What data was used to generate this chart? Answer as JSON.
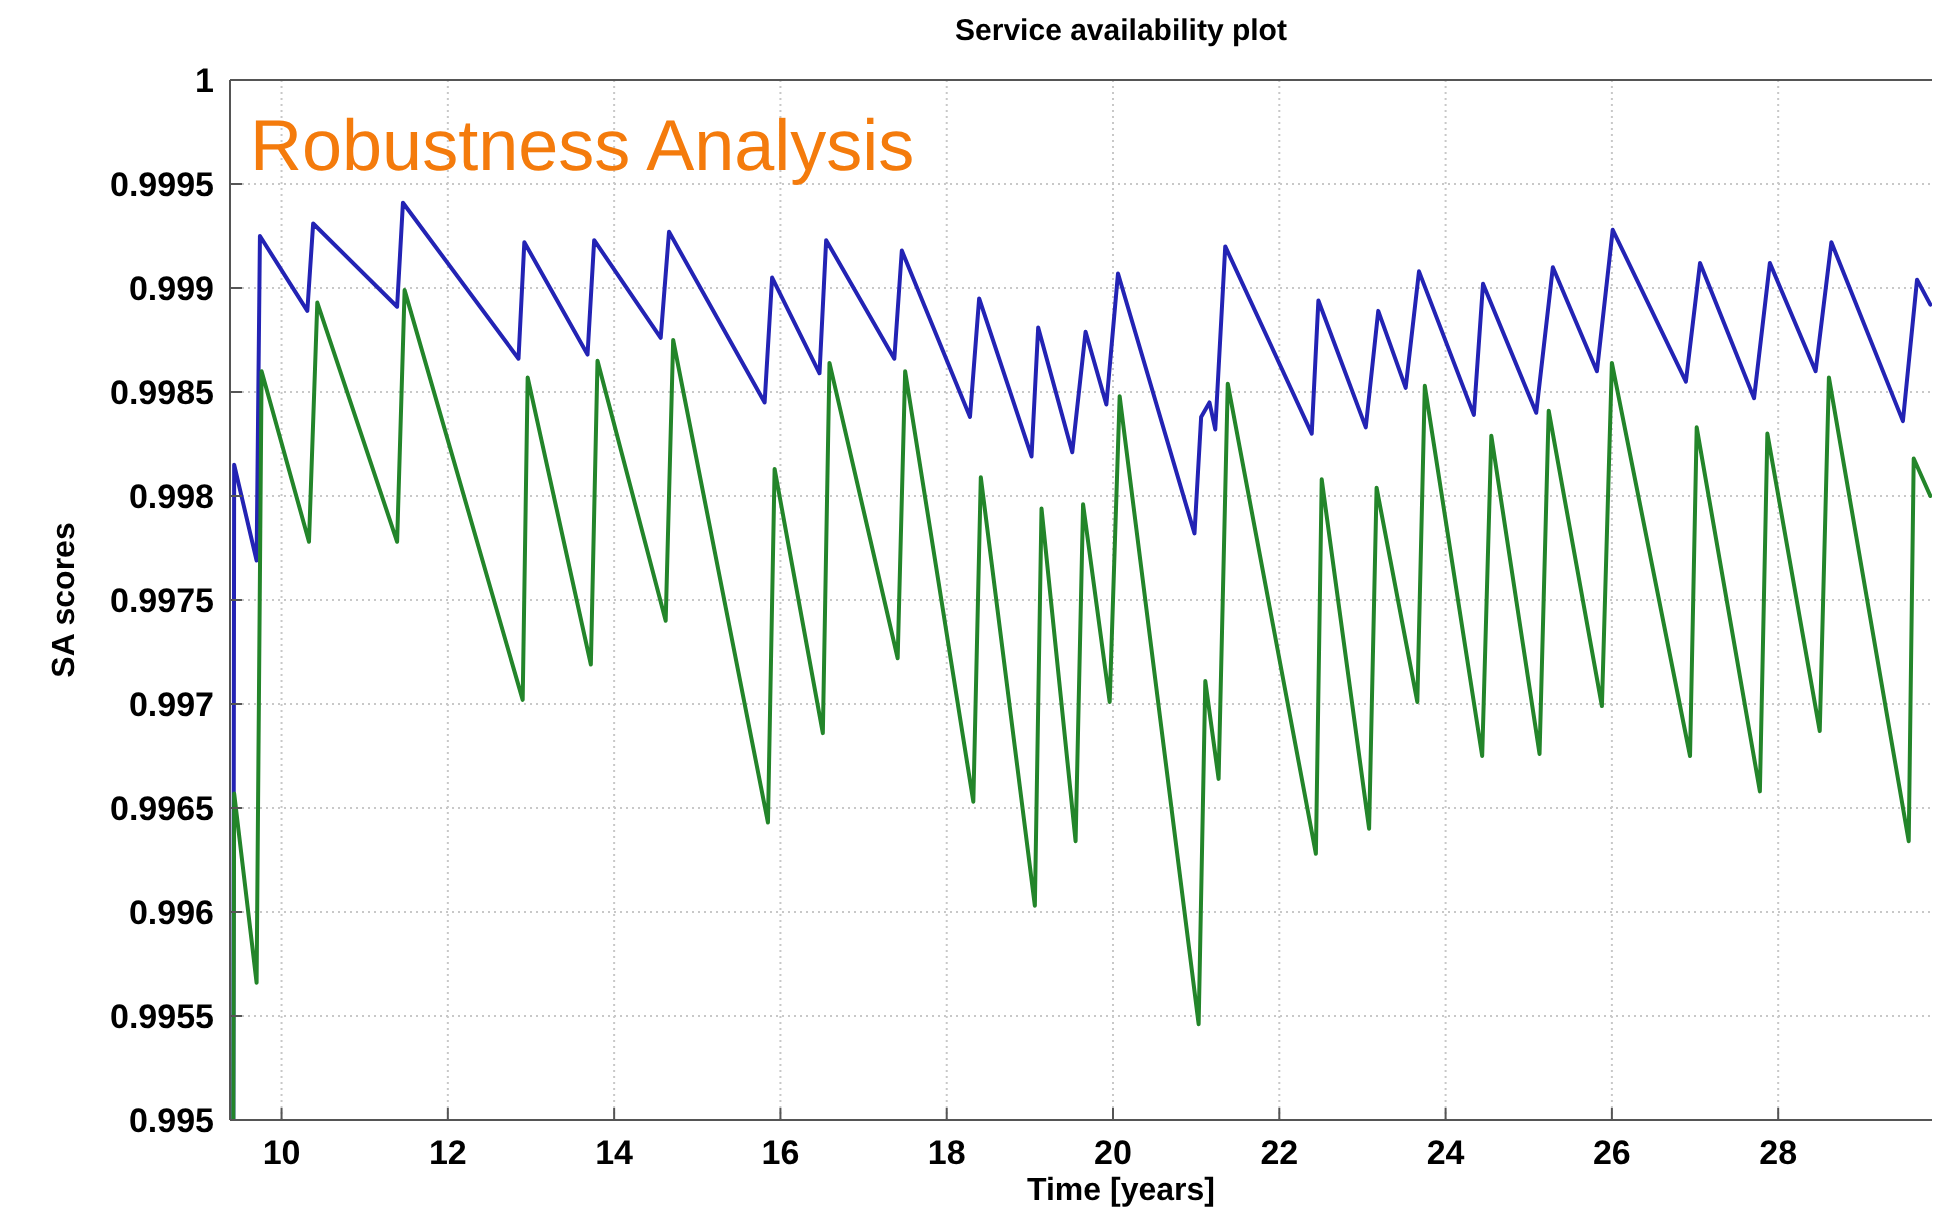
{
  "chart_data": {
    "type": "line",
    "title": "Service availability plot",
    "xlabel": "Time [years]",
    "ylabel": "SA scores",
    "annotations": [
      "Robustness Analysis"
    ],
    "xlim": [
      9.38,
      29.85
    ],
    "ylim": [
      0.995,
      1
    ],
    "xticks": [
      10,
      12,
      14,
      16,
      18,
      20,
      22,
      24,
      26,
      28
    ],
    "yticks": [
      0.995,
      0.9955,
      0.996,
      0.9965,
      0.997,
      0.9975,
      0.998,
      0.9985,
      0.999,
      0.9995,
      1
    ],
    "grid": true,
    "series": [
      {
        "color": "#2323b4",
        "x": [
          9.42,
          9.43,
          9.7,
          9.74,
          10.31,
          10.38,
          11.39,
          11.46,
          12.85,
          12.92,
          13.68,
          13.76,
          14.56,
          14.66,
          15.81,
          15.9,
          16.47,
          16.55,
          17.37,
          17.46,
          18.28,
          18.39,
          19.02,
          19.1,
          19.51,
          19.67,
          19.92,
          20.06,
          20.98,
          21.06,
          21.16,
          21.23,
          21.35,
          22.39,
          22.47,
          23.04,
          23.19,
          23.52,
          23.68,
          24.34,
          24.45,
          25.09,
          25.29,
          25.82,
          26.01,
          26.89,
          27.06,
          27.71,
          27.9,
          28.45,
          28.64,
          29.5,
          29.67,
          29.83
        ],
        "values": [
          0.995,
          0.99815,
          0.99769,
          0.99925,
          0.99889,
          0.99931,
          0.99891,
          0.99941,
          0.99866,
          0.99922,
          0.99868,
          0.99923,
          0.99876,
          0.99927,
          0.99845,
          0.99905,
          0.99859,
          0.99923,
          0.99866,
          0.99918,
          0.99838,
          0.99895,
          0.99819,
          0.99881,
          0.99821,
          0.99879,
          0.99844,
          0.99907,
          0.99782,
          0.99838,
          0.99845,
          0.99832,
          0.9992,
          0.9983,
          0.99894,
          0.99833,
          0.99889,
          0.99852,
          0.99908,
          0.99839,
          0.99902,
          0.9984,
          0.9991,
          0.9986,
          0.99928,
          0.99855,
          0.99912,
          0.99847,
          0.99912,
          0.9986,
          0.99922,
          0.99836,
          0.99904,
          0.99892
        ]
      },
      {
        "color": "#23852a",
        "x": [
          9.42,
          9.43,
          9.7,
          9.76,
          10.33,
          10.43,
          11.39,
          11.48,
          12.9,
          12.96,
          13.72,
          13.8,
          14.62,
          14.71,
          15.85,
          15.93,
          16.51,
          16.59,
          17.41,
          17.5,
          18.32,
          18.41,
          19.06,
          19.14,
          19.55,
          19.64,
          19.96,
          20.08,
          21.03,
          21.11,
          21.27,
          21.38,
          22.44,
          22.51,
          23.08,
          23.17,
          23.66,
          23.75,
          24.44,
          24.55,
          25.13,
          25.24,
          25.88,
          26.0,
          26.94,
          27.02,
          27.78,
          27.87,
          28.5,
          28.61,
          29.57,
          29.63,
          29.83
        ],
        "values": [
          0.995,
          0.99657,
          0.99566,
          0.9986,
          0.99778,
          0.99893,
          0.99778,
          0.99899,
          0.99702,
          0.99857,
          0.99719,
          0.99865,
          0.9974,
          0.99875,
          0.99643,
          0.99813,
          0.99686,
          0.99864,
          0.99722,
          0.9986,
          0.99653,
          0.99809,
          0.99603,
          0.99794,
          0.99634,
          0.99796,
          0.99701,
          0.99848,
          0.99546,
          0.99711,
          0.99664,
          0.99854,
          0.99628,
          0.99808,
          0.9964,
          0.99804,
          0.99701,
          0.99853,
          0.99675,
          0.99829,
          0.99676,
          0.99841,
          0.99699,
          0.99864,
          0.99675,
          0.99833,
          0.99658,
          0.9983,
          0.99687,
          0.99857,
          0.99634,
          0.99818,
          0.998
        ]
      }
    ]
  }
}
